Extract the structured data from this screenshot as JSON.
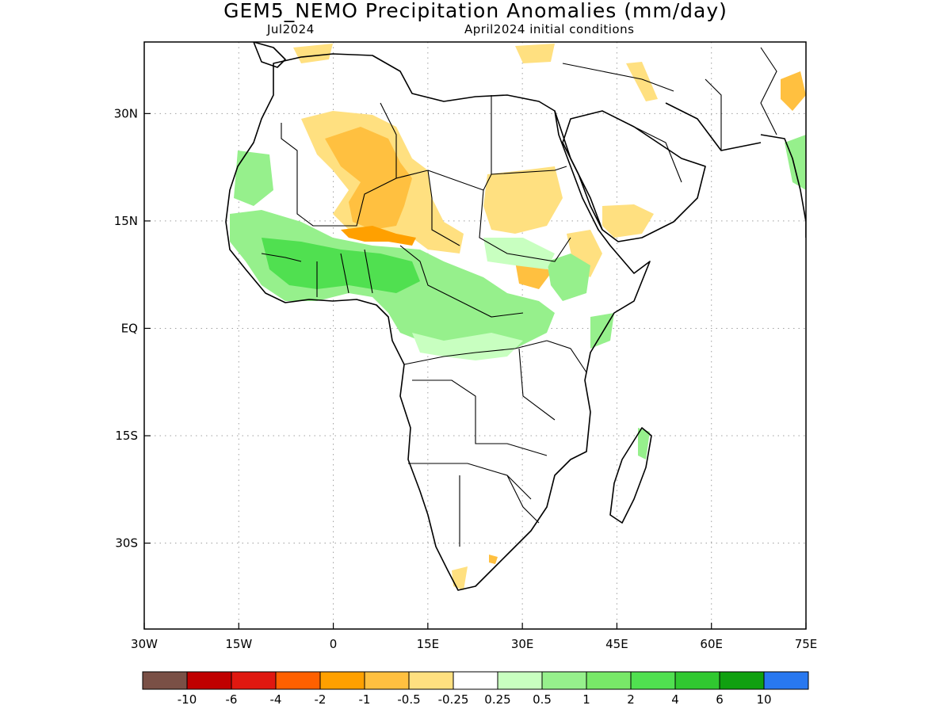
{
  "title": "GEM5_NEMO Precipitation Anomalies (mm/day)",
  "subtitle_left": "Jul2024",
  "subtitle_right": "April2024 initial conditions",
  "axes": {
    "lon_range": [
      -30,
      75
    ],
    "lat_range": [
      -42,
      40
    ],
    "lat_ticks": [
      {
        "value": 30,
        "label": "30N"
      },
      {
        "value": 15,
        "label": "15N"
      },
      {
        "value": 0,
        "label": "EQ"
      },
      {
        "value": -15,
        "label": "15S"
      },
      {
        "value": -30,
        "label": "30S"
      }
    ],
    "lon_ticks": [
      {
        "value": -30,
        "label": "30W"
      },
      {
        "value": -15,
        "label": "15W"
      },
      {
        "value": 0,
        "label": "0"
      },
      {
        "value": 15,
        "label": "15E"
      },
      {
        "value": 30,
        "label": "30E"
      },
      {
        "value": 45,
        "label": "45E"
      },
      {
        "value": 60,
        "label": "60E"
      },
      {
        "value": 75,
        "label": "75E"
      }
    ],
    "grid": true
  },
  "colorbar": {
    "colors": [
      "#7a5046",
      "#c00000",
      "#e01810",
      "#ff6000",
      "#ffa000",
      "#ffc040",
      "#ffe080",
      "#ffffff",
      "#c8ffc0",
      "#96f08c",
      "#78e868",
      "#50e050",
      "#30c830",
      "#10a010",
      "#2878f0"
    ],
    "labels": [
      "-10",
      "-6",
      "-4",
      "-2",
      "-1",
      "-0.5",
      "-0.25",
      "0.25",
      "0.5",
      "1",
      "2",
      "4",
      "6",
      "10"
    ]
  },
  "colors": {
    "dry_light": "#ffe080",
    "dry_mid": "#ffc040",
    "dry_strong": "#ffa000",
    "wet_light": "#c8ffc0",
    "wet_mid": "#96f08c",
    "wet_strong": "#50e050",
    "coast": "#000000",
    "grid": "#a0a0a0"
  }
}
